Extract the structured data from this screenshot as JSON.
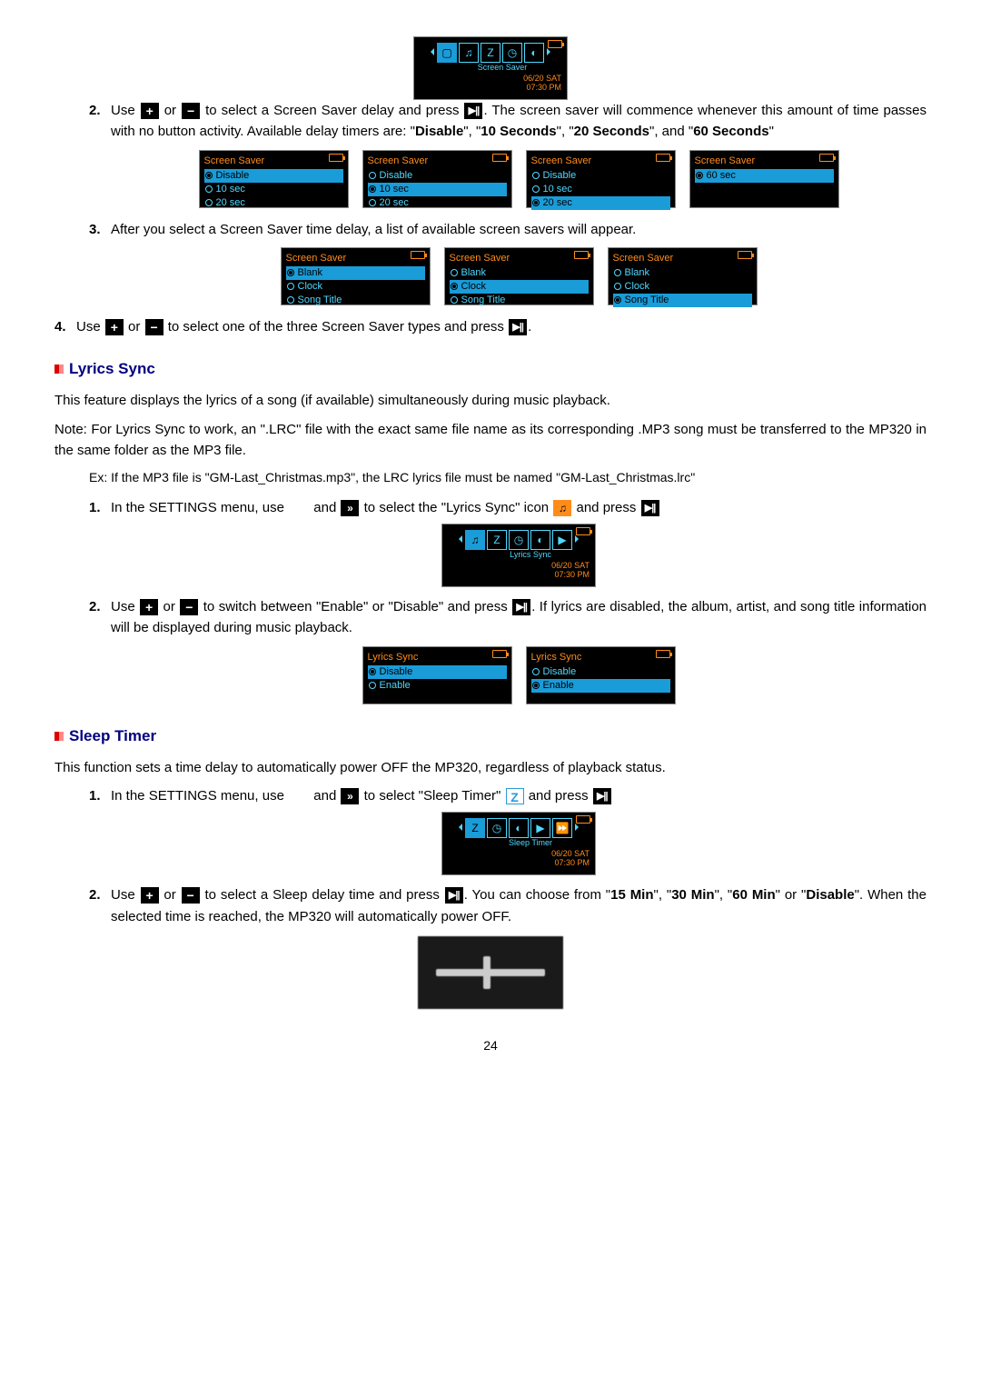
{
  "page_number": "24",
  "colors": {
    "accent_orange": "#ff8c1a",
    "accent_cyan": "#4fd8ff",
    "accent_cyan_hl": "#1a9cd8",
    "heading_blue": "#000080"
  },
  "hero_screen_saver": {
    "title_label": "Screen Saver",
    "sub_label": "Screen Saver",
    "date": "06/20 SAT",
    "time": "07:30 PM",
    "icons": [
      "monitor",
      "lyrics",
      "Z",
      "clock",
      "contrast"
    ]
  },
  "step_ss_2": {
    "num": "2.",
    "pre": "Use ",
    "mid1": " or ",
    "mid2": " to select a Screen Saver delay and press ",
    "post": ". The screen saver will commence whenever this amount of time passes with no button activity. Available delay timers are: \"",
    "b1": "Disable",
    "b1s": "\", \"",
    "b2": "10 Seconds",
    "b2s": "\", \"",
    "b3": "20 Seconds",
    "b3s": "\", and \"",
    "b4": "60 Seconds",
    "b4e": "\""
  },
  "screens_delay": [
    {
      "title": "Screen Saver",
      "rows": [
        {
          "t": "Disable",
          "sel": true,
          "hl": true
        },
        {
          "t": "10 sec",
          "sel": false
        },
        {
          "t": "20 sec",
          "sel": false
        }
      ]
    },
    {
      "title": "Screen Saver",
      "rows": [
        {
          "t": "Disable",
          "sel": false
        },
        {
          "t": "10 sec",
          "sel": true,
          "hl": true
        },
        {
          "t": "20 sec",
          "sel": false
        }
      ]
    },
    {
      "title": "Screen Saver",
      "rows": [
        {
          "t": "Disable",
          "sel": false
        },
        {
          "t": "10 sec",
          "sel": false
        },
        {
          "t": "20 sec",
          "sel": true,
          "hl": true
        }
      ]
    },
    {
      "title": "Screen Saver",
      "rows": [
        {
          "t": "60 sec",
          "sel": true,
          "hl": true
        }
      ]
    }
  ],
  "step_ss_3": {
    "num": "3.",
    "text": "After you select a Screen Saver time delay, a list of available screen savers will appear."
  },
  "screens_types": [
    {
      "title": "Screen Saver",
      "rows": [
        {
          "t": "Blank",
          "sel": true,
          "hl": true
        },
        {
          "t": "Clock",
          "sel": false
        },
        {
          "t": "Song Title",
          "sel": false
        }
      ]
    },
    {
      "title": "Screen Saver",
      "rows": [
        {
          "t": "Blank",
          "sel": false
        },
        {
          "t": "Clock",
          "sel": true,
          "hl": true
        },
        {
          "t": "Song Title",
          "sel": false
        }
      ]
    },
    {
      "title": "Screen Saver",
      "rows": [
        {
          "t": "Blank",
          "sel": false
        },
        {
          "t": "Clock",
          "sel": false
        },
        {
          "t": "Song Title",
          "sel": true,
          "hl": true
        }
      ]
    }
  ],
  "step_ss_4": {
    "num": "4.",
    "pre": "Use ",
    "mid1": " or ",
    "mid2": " to select one of the three Screen Saver types and press ",
    "post": "."
  },
  "lyrics": {
    "heading": "Lyrics Sync",
    "p1": "This feature displays the lyrics of a song (if available) simultaneously during music playback.",
    "p2": "Note: For Lyrics Sync to work, an \".LRC\" file with the exact same file name as its corresponding .MP3 song must be transferred to the MP320 in the same folder as the MP3 file.",
    "ex": "Ex: If the MP3 file is \"GM-Last_Christmas.mp3\", the LRC lyrics file must be named \"GM-Last_Christmas.lrc\"",
    "s1": {
      "num": "1.",
      "pre": "In the SETTINGS menu, use ",
      "mid1": " and ",
      "mid2": " to select the \"Lyrics Sync\" icon ",
      "mid3": " and press "
    },
    "hero": {
      "sub": "Lyrics Sync",
      "date": "06/20 SAT",
      "time": "07:30 PM",
      "icons": [
        "lyrics",
        "Z",
        "clock",
        "contrast",
        "next"
      ]
    },
    "s2": {
      "num": "2.",
      "pre": "Use ",
      "mid1": " or ",
      "mid2": " to switch between \"Enable\" or \"Disable\" and press ",
      "post": ". If lyrics are disabled, the album, artist, and song title information will be displayed during music playback."
    },
    "screens": [
      {
        "title": "Lyrics Sync",
        "rows": [
          {
            "t": "Disable",
            "sel": true,
            "hl": true
          },
          {
            "t": "Enable",
            "sel": false
          }
        ]
      },
      {
        "title": "Lyrics Sync",
        "rows": [
          {
            "t": "Disable",
            "sel": false
          },
          {
            "t": "Enable",
            "sel": true,
            "hl": true
          }
        ]
      }
    ]
  },
  "sleep": {
    "heading": "Sleep Timer",
    "p1": "This function sets a time delay to automatically power OFF the MP320, regardless of playback status.",
    "s1": {
      "num": "1.",
      "pre": "In the SETTINGS menu, use ",
      "mid1": " and ",
      "mid2": " to select \"Sleep Timer\" ",
      "mid3": "and press "
    },
    "hero": {
      "sub": "Sleep Timer",
      "date": "06/20 SAT",
      "time": "07:30 PM",
      "icons": [
        "Z",
        "clock",
        "contrast",
        "next",
        "speed"
      ]
    },
    "s2": {
      "num": "2.",
      "pre": "Use ",
      "mid1": " or ",
      "mid2": " to select a Sleep delay time and press ",
      "post1": ". You can choose from \"",
      "b1": "15 Min",
      "b1s": "\", \"",
      "b2": "30 Min",
      "b2s": "\", \"",
      "b3": "60 Min",
      "b3s": "\" or \"",
      "b4": "Disable",
      "post2": "\". When the selected time is reached, the MP320 will automatically power OFF."
    }
  }
}
